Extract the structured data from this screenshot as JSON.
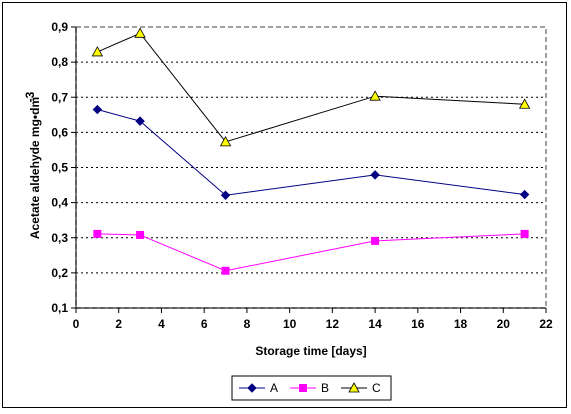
{
  "chart_data": {
    "type": "line",
    "xlabel": "Storage time [days]",
    "ylabel": "Acetate aldehyde mg•dm",
    "ylabel_superscript": "-3",
    "xlim": [
      0,
      22
    ],
    "ylim": [
      0.1,
      0.9
    ],
    "x_ticks": [
      "0",
      "2",
      "4",
      "6",
      "8",
      "10",
      "12",
      "14",
      "16",
      "18",
      "20",
      "22"
    ],
    "y_ticks": [
      "0,1",
      "0,2",
      "0,3",
      "0,4",
      "0,5",
      "0,6",
      "0,7",
      "0,8",
      "0,9"
    ],
    "grid": "horizontal-dotted",
    "legend_position": "bottom",
    "x": [
      1,
      3,
      7,
      14,
      21
    ],
    "series": [
      {
        "name": "A",
        "values": [
          0.665,
          0.632,
          0.421,
          0.479,
          0.423
        ],
        "color": "#000080",
        "marker": "diamond"
      },
      {
        "name": "B",
        "values": [
          0.311,
          0.308,
          0.206,
          0.291,
          0.311
        ],
        "color": "#FF00FF",
        "marker": "square"
      },
      {
        "name": "C",
        "values": [
          0.829,
          0.882,
          0.573,
          0.703,
          0.68
        ],
        "color": "#000000",
        "marker": "triangle",
        "fill": "#FFFF00"
      }
    ]
  }
}
